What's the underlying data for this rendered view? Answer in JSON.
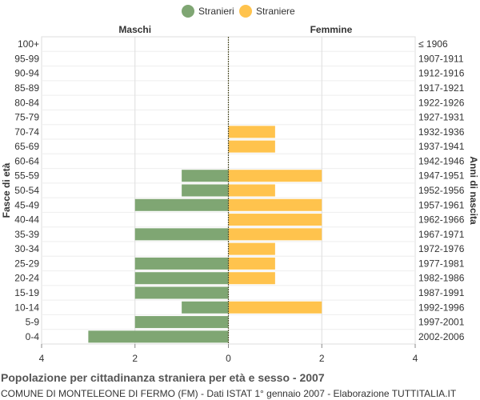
{
  "chart_data": {
    "type": "bar",
    "orientation": "horizontal-population-pyramid",
    "title": "Popolazione per cittadinanza straniera per età e sesso - 2007",
    "subtitle": "COMUNE DI MONTELEONE DI FERMO (FM) - Dati ISTAT 1° gennaio 2007 - Elaborazione TUTTITALIA.IT",
    "ylabel_left": "Fasce di età",
    "ylabel_right": "Anni di nascita",
    "left_header": "Maschi",
    "right_header": "Femmine",
    "age_groups": [
      "100+",
      "95-99",
      "90-94",
      "85-89",
      "80-84",
      "75-79",
      "70-74",
      "65-69",
      "60-64",
      "55-59",
      "50-54",
      "45-49",
      "40-44",
      "35-39",
      "30-34",
      "25-29",
      "20-24",
      "15-19",
      "10-14",
      "5-9",
      "0-4"
    ],
    "birth_years": [
      "≤ 1906",
      "1907-1911",
      "1912-1916",
      "1917-1921",
      "1922-1926",
      "1927-1931",
      "1932-1936",
      "1937-1941",
      "1942-1946",
      "1947-1951",
      "1952-1956",
      "1957-1961",
      "1962-1966",
      "1967-1971",
      "1972-1976",
      "1977-1981",
      "1982-1986",
      "1987-1991",
      "1992-1996",
      "1997-2001",
      "2002-2006"
    ],
    "series": [
      {
        "name": "Stranieri",
        "side": "left",
        "color": "#7fa673",
        "values": [
          0,
          0,
          0,
          0,
          0,
          0,
          0,
          0,
          0,
          1,
          1,
          2,
          0,
          2,
          0,
          2,
          2,
          2,
          1,
          2,
          3
        ]
      },
      {
        "name": "Straniere",
        "side": "right",
        "color": "#ffc34d",
        "values": [
          0,
          0,
          0,
          0,
          0,
          0,
          1,
          1,
          0,
          2,
          1,
          2,
          2,
          2,
          1,
          1,
          1,
          0,
          2,
          0,
          0
        ]
      }
    ],
    "xlim": [
      -4,
      4
    ],
    "xticks": [
      -4,
      -2,
      0,
      2,
      4
    ],
    "xtick_labels": [
      "4",
      "2",
      "0",
      "2",
      "4"
    ],
    "grid": true,
    "legend_position": "top"
  }
}
